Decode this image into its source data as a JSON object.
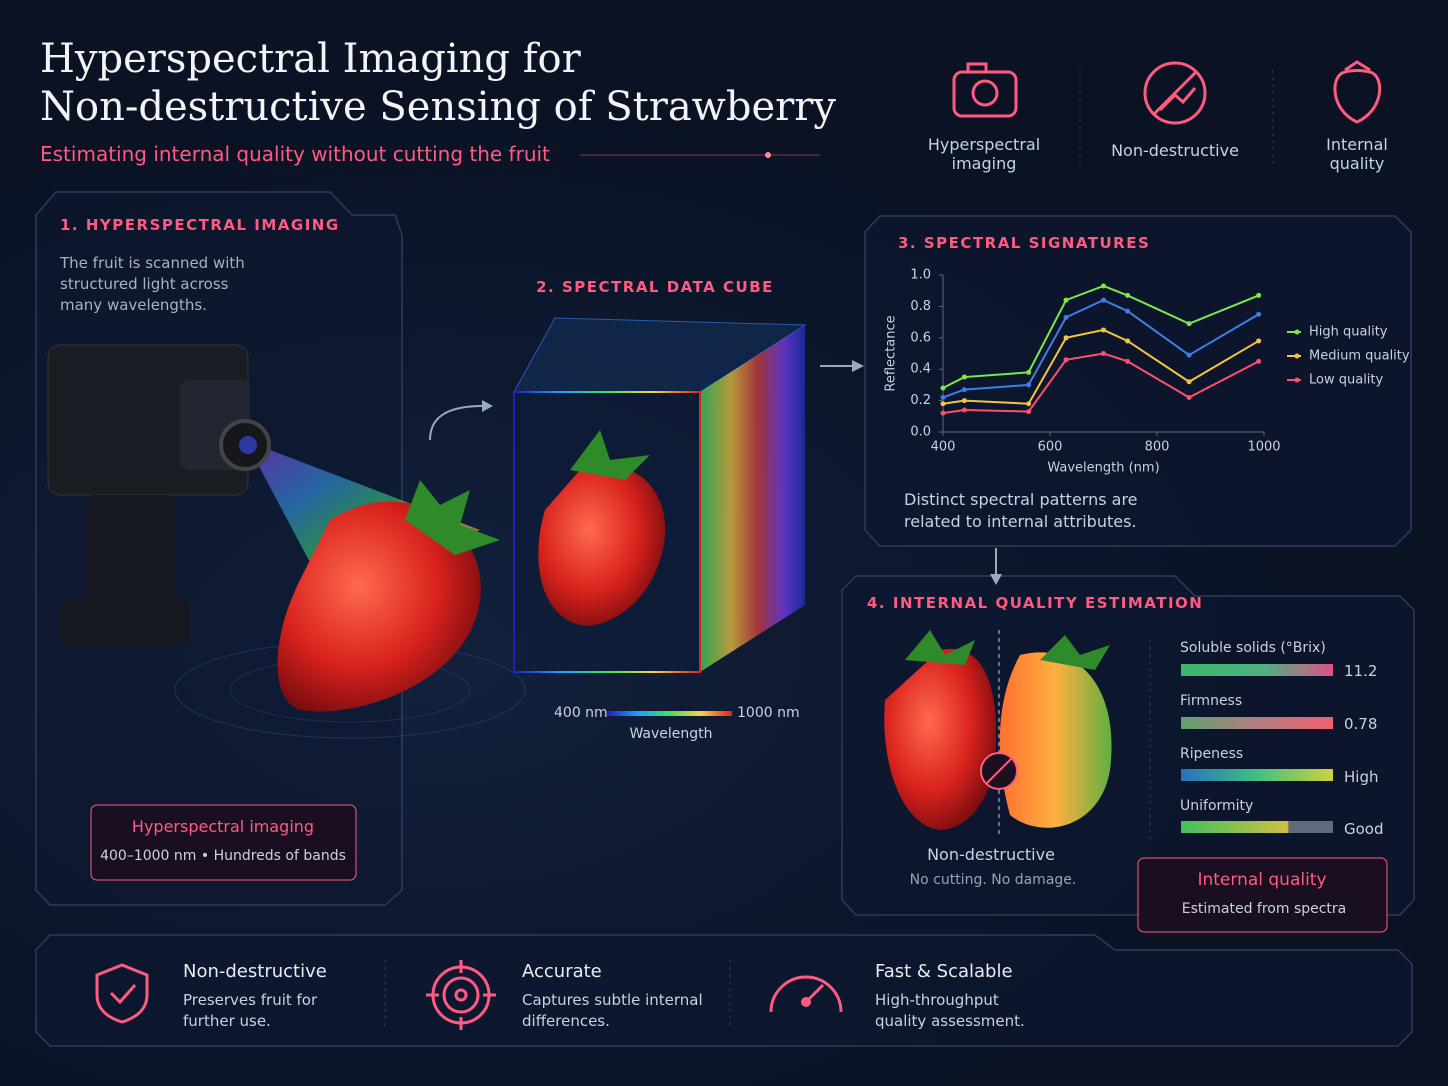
{
  "header": {
    "title_line1": "Hyperspectral Imaging for",
    "title_line2": "Non-destructive Sensing of Strawberry",
    "subtitle": "Estimating internal quality without cutting the fruit"
  },
  "features": [
    "Hyperspectral imaging",
    "Non-destructive",
    "Internal quality"
  ],
  "panel1": {
    "heading": "1. HYPERSPECTRAL IMAGING",
    "text": "The fruit is scanned with structured light across many wavelengths.",
    "badge_title": "Hyperspectral imaging",
    "badge_text": "400–1000 nm • Hundreds of bands"
  },
  "panel2": {
    "heading": "2. SPECTRAL DATA CUBE",
    "range_start": "400 nm",
    "range_end": "1000 nm",
    "axis_label": "Wavelength"
  },
  "chart_data": {
    "type": "line",
    "title": "3. SPECTRAL SIGNATURES",
    "xlabel": "Wavelength (nm)",
    "ylabel": "Reflectance",
    "caption": "Distinct spectral patterns are related to internal attributes.",
    "legend": "right",
    "x": [
      400,
      440,
      560,
      630,
      700,
      745,
      860,
      990
    ],
    "series": [
      {
        "name": "High quality",
        "color": "#7de84a",
        "values": [
          0.28,
          0.35,
          0.38,
          0.84,
          0.93,
          0.87,
          0.69,
          0.87
        ]
      },
      {
        "color": "#3f7ee8",
        "values": [
          0.22,
          0.27,
          0.3,
          0.73,
          0.84,
          0.77,
          0.49,
          0.75
        ]
      },
      {
        "name": "Medium quality",
        "color": "#f5c542",
        "values": [
          0.18,
          0.2,
          0.18,
          0.6,
          0.65,
          0.58,
          0.32,
          0.58
        ]
      },
      {
        "name": "Low quality",
        "color": "#ff4f6e",
        "values": [
          0.12,
          0.14,
          0.13,
          0.46,
          0.5,
          0.45,
          0.22,
          0.45
        ]
      }
    ],
    "xlim": [
      400,
      1000
    ],
    "ylim": [
      0,
      1
    ],
    "xticks": [
      400,
      600,
      800,
      1000
    ],
    "yticks": [
      {
        "value": 0,
        "label": "0.0"
      },
      0.2,
      0.4,
      0.6,
      0.8,
      {
        "value": 1,
        "label": "1.0"
      }
    ]
  },
  "panel4": {
    "heading": "4. INTERNAL QUALITY ESTIMATION",
    "split_label": "Non-destructive",
    "split_note": "No cutting. No damage.",
    "metrics": [
      {
        "name": "Soluble solids (°Brix)",
        "value": 11.2
      },
      {
        "name": "Firmness",
        "value": 0.78
      },
      {
        "name": "Ripeness",
        "value": "High"
      },
      {
        "name": "Uniformity",
        "value": "Good"
      }
    ],
    "badge_title": "Internal quality",
    "badge_text": "Estimated from spectra"
  },
  "benefits": [
    {
      "title": "Non-destructive",
      "text": "Preserves fruit for further use."
    },
    {
      "title": "Accurate",
      "text": "Captures subtle internal differences."
    },
    {
      "title": "Fast & Scalable",
      "text": "High-throughput quality assessment."
    }
  ]
}
